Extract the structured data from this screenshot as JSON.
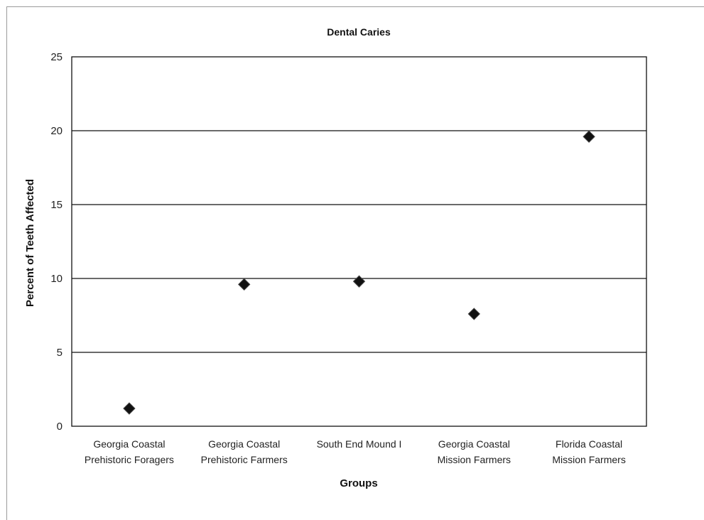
{
  "chart_data": {
    "type": "scatter",
    "title": "Dental Caries",
    "xlabel": "Groups",
    "ylabel": "Percent of Teeth Affected",
    "ylim": [
      0,
      25
    ],
    "yticks": [
      0,
      5,
      10,
      15,
      20,
      25
    ],
    "grid": true,
    "categories": [
      [
        "Georgia Coastal",
        "Prehistoric Foragers"
      ],
      [
        "Georgia Coastal",
        "Prehistoric Farmers"
      ],
      [
        "South End Mound I"
      ],
      [
        "Georgia Coastal",
        "Mission Farmers"
      ],
      [
        "Florida Coastal",
        "Mission Farmers"
      ]
    ],
    "values": [
      1.2,
      9.6,
      9.8,
      7.6,
      19.6
    ],
    "marker": "diamond",
    "marker_color": "#111111"
  }
}
